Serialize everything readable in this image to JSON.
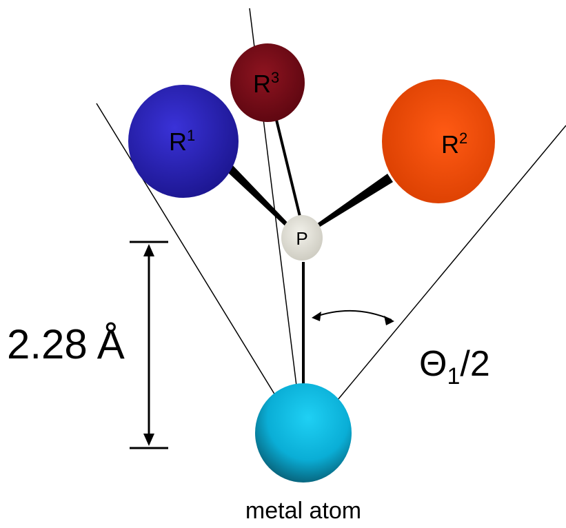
{
  "atoms": {
    "r1": {
      "label": "R",
      "sup": "1",
      "color": "#2a1fb8"
    },
    "r2": {
      "label": "R",
      "sup": "2",
      "color": "#f04e0a"
    },
    "r3": {
      "label": "R",
      "sup": "3",
      "color": "#7a0a14"
    },
    "p": {
      "label": "P",
      "color": "#e6e4dc"
    },
    "metal": {
      "label": "metal atom",
      "color": "#10bde0"
    }
  },
  "distance": {
    "number": "2.28",
    "unit": "Å"
  },
  "angle": {
    "symbol": "Θ",
    "subscript": "1",
    "suffix": "/2"
  }
}
